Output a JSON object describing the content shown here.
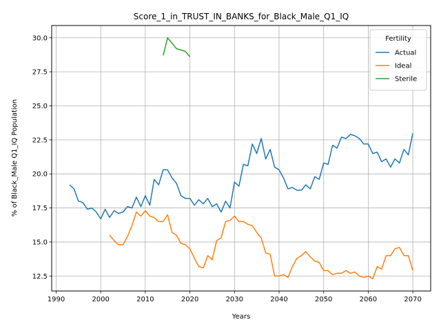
{
  "chart_data": {
    "type": "line",
    "title": "Score_1_in_TRUST_IN_BANKS_for_Black_Male_Q1_IQ",
    "xlabel": "Years",
    "ylabel": "% of Black_Male Q1_IQ Population",
    "xlim": [
      1989,
      2074
    ],
    "ylim": [
      11.4,
      30.9
    ],
    "xticks": [
      1990,
      2000,
      2010,
      2020,
      2030,
      2040,
      2050,
      2060,
      2070
    ],
    "yticks": [
      12.5,
      15.0,
      17.5,
      20.0,
      22.5,
      25.0,
      27.5,
      30.0
    ],
    "grid": true,
    "legend": {
      "title": "Fertility",
      "placement": "top-right"
    },
    "series": [
      {
        "name": "Actual",
        "color": "#1f77b4",
        "x": [
          1993,
          1994,
          1995,
          1996,
          1997,
          1998,
          1999,
          2000,
          2001,
          2002,
          2003,
          2004,
          2005,
          2006,
          2007,
          2008,
          2009,
          2010,
          2011,
          2012,
          2013,
          2014,
          2015,
          2016,
          2017,
          2018,
          2019,
          2020,
          2021,
          2022,
          2023,
          2024,
          2025,
          2026,
          2027,
          2028,
          2029,
          2030,
          2031,
          2032,
          2033,
          2034,
          2035,
          2036,
          2037,
          2038,
          2039,
          2040,
          2041,
          2042,
          2043,
          2044,
          2045,
          2046,
          2047,
          2048,
          2049,
          2050,
          2051,
          2052,
          2053,
          2054,
          2055,
          2056,
          2057,
          2058,
          2059,
          2060,
          2061,
          2062,
          2063,
          2064,
          2065,
          2066,
          2067,
          2068,
          2069,
          2070
        ],
        "y": [
          19.2,
          18.9,
          18.0,
          17.9,
          17.4,
          17.5,
          17.2,
          16.7,
          17.4,
          16.8,
          17.3,
          17.1,
          17.2,
          17.6,
          17.5,
          18.3,
          17.6,
          18.4,
          17.7,
          19.6,
          19.2,
          20.3,
          20.3,
          19.7,
          19.3,
          18.4,
          18.2,
          18.2,
          17.7,
          18.1,
          17.8,
          18.2,
          17.6,
          17.8,
          17.2,
          18.0,
          17.5,
          19.4,
          19.1,
          20.7,
          20.6,
          22.2,
          21.5,
          22.6,
          21.1,
          21.8,
          20.5,
          20.3,
          19.7,
          18.9,
          19.0,
          18.8,
          18.8,
          19.2,
          18.9,
          19.8,
          19.6,
          20.8,
          20.7,
          22.1,
          21.9,
          22.7,
          22.6,
          22.9,
          22.8,
          22.6,
          22.2,
          22.2,
          21.5,
          21.6,
          20.9,
          21.1,
          20.5,
          21.1,
          20.8,
          21.8,
          21.4,
          23.0
        ]
      },
      {
        "name": "Ideal",
        "color": "#ff7f0e",
        "x": [
          2002,
          2003,
          2004,
          2005,
          2006,
          2007,
          2008,
          2009,
          2010,
          2011,
          2012,
          2013,
          2014,
          2015,
          2016,
          2017,
          2018,
          2019,
          2020,
          2021,
          2022,
          2023,
          2024,
          2025,
          2026,
          2027,
          2028,
          2029,
          2030,
          2031,
          2032,
          2033,
          2034,
          2035,
          2036,
          2037,
          2038,
          2039,
          2040,
          2041,
          2042,
          2043,
          2044,
          2045,
          2046,
          2047,
          2048,
          2049,
          2050,
          2051,
          2052,
          2053,
          2054,
          2055,
          2056,
          2057,
          2058,
          2059,
          2060,
          2061,
          2062,
          2063,
          2064,
          2065,
          2066,
          2067,
          2068,
          2069,
          2070
        ],
        "y": [
          15.5,
          15.1,
          14.8,
          14.8,
          15.4,
          16.2,
          17.2,
          16.9,
          17.3,
          16.9,
          16.8,
          16.5,
          16.5,
          17.0,
          15.7,
          15.5,
          14.9,
          14.8,
          14.5,
          13.8,
          13.2,
          13.1,
          14.0,
          13.7,
          15.1,
          15.3,
          16.5,
          16.6,
          16.9,
          16.5,
          16.5,
          16.3,
          16.2,
          15.7,
          15.3,
          14.2,
          14.1,
          12.5,
          12.5,
          12.6,
          12.4,
          13.2,
          13.8,
          14.0,
          14.3,
          13.9,
          13.6,
          13.5,
          12.9,
          12.9,
          12.6,
          12.7,
          12.7,
          12.9,
          12.7,
          12.8,
          12.5,
          12.4,
          12.5,
          12.3,
          13.2,
          13.0,
          14.0,
          14.0,
          14.5,
          14.6,
          14.0,
          14.0,
          12.9
        ]
      },
      {
        "name": "Sterile",
        "color": "#2ca02c",
        "x": [
          2014,
          2015,
          2016,
          2017,
          2018,
          2019,
          2020
        ],
        "y": [
          28.7,
          30.0,
          29.6,
          29.2,
          29.1,
          29.0,
          28.6
        ]
      }
    ]
  }
}
